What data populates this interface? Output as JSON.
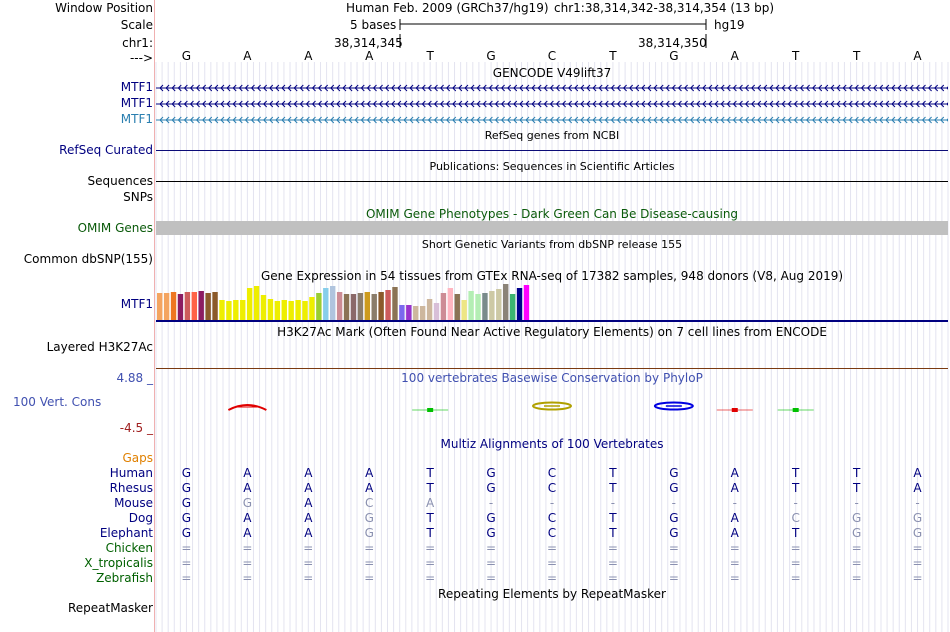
{
  "header": {
    "window_position_label": "Window Position",
    "scale_label": "Scale",
    "chrom_label": "chr1:",
    "strand_label": "--->",
    "assembly": "Human Feb. 2009 (GRCh37/hg19)",
    "position": "chr1:38,314,342-38,314,354 (13 bp)",
    "scale_text": "5 bases",
    "db": "hg19",
    "coord_left": "38,314,345",
    "coord_right": "38,314,350"
  },
  "bases": [
    "G",
    "A",
    "A",
    "A",
    "T",
    "G",
    "C",
    "T",
    "G",
    "A",
    "T",
    "T",
    "A"
  ],
  "tracks": {
    "gencode": {
      "title": "GENCODE V49lift37",
      "rows": [
        "MTF1",
        "MTF1",
        "MTF1"
      ],
      "row_colors": [
        "#000080",
        "#000080",
        "#2a7fb0"
      ]
    },
    "refseq": {
      "title": "RefSeq genes from NCBI",
      "label": "RefSeq Curated"
    },
    "publications": {
      "title": "Publications: Sequences in Scientific Articles",
      "label": "Sequences"
    },
    "snps_label": "SNPs",
    "omim": {
      "title": "OMIM Gene Phenotypes - Dark Green Can Be Disease-causing",
      "label": "OMIM Genes",
      "color": "#0a5a0a"
    },
    "dbsnp": {
      "title": "Short Genetic Variants from dbSNP release 155",
      "label": "Common dbSNP(155)"
    },
    "gtex": {
      "title": "Gene Expression in 54 tissues from GTEx RNA-seq of 17382 samples, 948 donors (V8, Aug 2019)",
      "label": "MTF1",
      "bar_values": [
        0.83,
        0.83,
        0.85,
        0.79,
        0.86,
        0.85,
        0.89,
        0.83,
        0.86,
        0.6,
        0.57,
        0.6,
        0.6,
        0.99,
        1.05,
        0.75,
        0.63,
        0.58,
        0.61,
        0.58,
        0.62,
        0.58,
        0.69,
        0.81,
        0.97,
        1.05,
        0.86,
        0.79,
        0.78,
        0.81,
        0.86,
        0.8,
        0.85,
        0.93,
        1.02,
        0.46,
        0.46,
        0.43,
        0.43,
        0.65,
        0.52,
        0.82,
        0.98,
        0.8,
        0.62,
        0.89,
        0.79,
        0.84,
        0.89,
        0.94,
        1.1,
        0.8,
        0.99,
        1.06
      ],
      "bar_colors": [
        "#f4a460",
        "#f4a460",
        "#ee7621",
        "#8b1c62",
        "#cd5c5c",
        "#ff6347",
        "#8b1c62",
        "#8b5a2b",
        "#8b5a2b",
        "#eeee00",
        "#eeee00",
        "#eeee00",
        "#eeee00",
        "#eeee00",
        "#eeee00",
        "#eeee00",
        "#eeee00",
        "#eeee00",
        "#eeee00",
        "#eeee00",
        "#eeee00",
        "#eeee00",
        "#eeee00",
        "#9acd32",
        "#87ceeb",
        "#b0c4de",
        "#cd8c95",
        "#8b7355",
        "#8b6969",
        "#8b7d6b",
        "#cd9b1d",
        "#8b7d6b",
        "#8b5a2b",
        "#cd5c5c",
        "#8b7355",
        "#7b68ee",
        "#9932cc",
        "#cdb79e",
        "#cdb79e",
        "#cdb79e",
        "#d8bfd8",
        "#cd8c95",
        "#ffb6c1",
        "#8b7355",
        "#eee685",
        "#b4eeb4",
        "#b4eeb4",
        "#7a8b8b",
        "#cdc9a5",
        "#cdc9a5",
        "#8b8378",
        "#3cb371",
        "#00008b",
        "#ff00ff"
      ]
    },
    "h3k27ac": {
      "title": "H3K27Ac Mark (Often Found Near Active Regulatory Elements) on 7 cell lines from ENCODE",
      "label": "Layered H3K27Ac"
    },
    "phylop": {
      "title": "100 vertebrates Basewise Conservation by PhyloP",
      "label": "100 Vert. Cons",
      "max": "4.88 _",
      "min": "-4.5 _"
    },
    "multiz": {
      "title": "Multiz Alignments of 100 Vertebrates",
      "gaps_label": "Gaps",
      "species": [
        {
          "name": "Human",
          "bases": [
            "G",
            "A",
            "A",
            "A",
            "T",
            "G",
            "C",
            "T",
            "G",
            "A",
            "T",
            "T",
            "A"
          ],
          "faded": [
            0,
            0,
            0,
            0,
            0,
            0,
            0,
            0,
            0,
            0,
            0,
            0,
            0
          ]
        },
        {
          "name": "Rhesus",
          "bases": [
            "G",
            "A",
            "A",
            "A",
            "T",
            "G",
            "C",
            "T",
            "G",
            "A",
            "T",
            "T",
            "A"
          ],
          "faded": [
            0,
            0,
            0,
            0,
            0,
            0,
            0,
            0,
            0,
            0,
            0,
            0,
            0
          ]
        },
        {
          "name": "Mouse",
          "bases": [
            "G",
            "G",
            "A",
            "C",
            "A",
            "-",
            "-",
            "-",
            "-",
            "-",
            "-",
            "-",
            "-"
          ],
          "faded": [
            0,
            1,
            0,
            1,
            1,
            1,
            1,
            1,
            1,
            1,
            1,
            1,
            1
          ]
        },
        {
          "name": "Dog",
          "bases": [
            "G",
            "A",
            "A",
            "G",
            "T",
            "G",
            "C",
            "T",
            "G",
            "A",
            "C",
            "G",
            "G"
          ],
          "faded": [
            0,
            0,
            0,
            1,
            0,
            0,
            0,
            0,
            0,
            0,
            1,
            1,
            1
          ]
        },
        {
          "name": "Elephant",
          "bases": [
            "G",
            "A",
            "A",
            "G",
            "T",
            "G",
            "C",
            "T",
            "G",
            "A",
            "T",
            "G",
            "G"
          ],
          "faded": [
            0,
            0,
            0,
            1,
            0,
            0,
            0,
            0,
            0,
            0,
            0,
            1,
            1
          ]
        },
        {
          "name": "Chicken",
          "bases": [
            "=",
            "=",
            "=",
            "=",
            "=",
            "=",
            "=",
            "=",
            "=",
            "=",
            "=",
            "=",
            "="
          ],
          "faded": [
            1,
            1,
            1,
            1,
            1,
            1,
            1,
            1,
            1,
            1,
            1,
            1,
            1
          ]
        },
        {
          "name": "X_tropicalis",
          "bases": [
            "=",
            "=",
            "=",
            "=",
            "=",
            "=",
            "=",
            "=",
            "=",
            "=",
            "=",
            "=",
            "="
          ],
          "faded": [
            1,
            1,
            1,
            1,
            1,
            1,
            1,
            1,
            1,
            1,
            1,
            1,
            1
          ]
        },
        {
          "name": "Zebrafish",
          "bases": [
            "=",
            "=",
            "=",
            "=",
            "=",
            "=",
            "=",
            "=",
            "=",
            "=",
            "=",
            "=",
            "="
          ],
          "faded": [
            1,
            1,
            1,
            1,
            1,
            1,
            1,
            1,
            1,
            1,
            1,
            1,
            1
          ]
        }
      ]
    },
    "repeatmasker": {
      "title": "Repeating Elements by RepeatMasker",
      "label": "RepeatMasker"
    }
  },
  "colors": {
    "navy": "#000080",
    "gaps": "#e08000",
    "species": "#006000",
    "phylop_max": "#4050b0",
    "phylop_min": "#a02020",
    "fade": "#8a90b0",
    "refseq": "#0c0c78",
    "h3k27ac_line": "#7a3a10"
  }
}
